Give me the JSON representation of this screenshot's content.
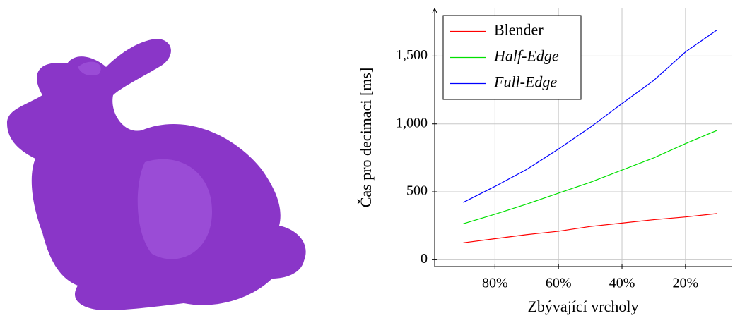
{
  "chart_data": {
    "type": "line",
    "xlabel": "Zbývající vrcholy",
    "ylabel": "Čas pro decimaci [ms]",
    "x": [
      90,
      80,
      70,
      60,
      50,
      40,
      30,
      20,
      10
    ],
    "series": [
      {
        "name": "Blender",
        "color": "#ff0000",
        "values": [
          125,
          155,
          185,
          210,
          245,
          270,
          295,
          315,
          340
        ]
      },
      {
        "name": "Half-Edge",
        "color": "#00e000",
        "values": [
          265,
          335,
          410,
          490,
          570,
          660,
          750,
          855,
          953
        ]
      },
      {
        "name": "Full-Edge",
        "color": "#0000ff",
        "values": [
          422,
          540,
          665,
          815,
          975,
          1150,
          1320,
          1530,
          1693
        ]
      }
    ],
    "xlim": [
      99,
      5.5
    ],
    "ylim": [
      -50,
      1850
    ],
    "xticks": [
      {
        "value": 80,
        "label": "80%"
      },
      {
        "value": 60,
        "label": "60%"
      },
      {
        "value": 40,
        "label": "40%"
      },
      {
        "value": 20,
        "label": "20%"
      }
    ],
    "yticks": [
      0,
      500,
      {
        "value": 1000,
        "label": "1,000"
      },
      {
        "value": 1500,
        "label": "1,500"
      }
    ],
    "grid": true,
    "legend": "top-left"
  }
}
